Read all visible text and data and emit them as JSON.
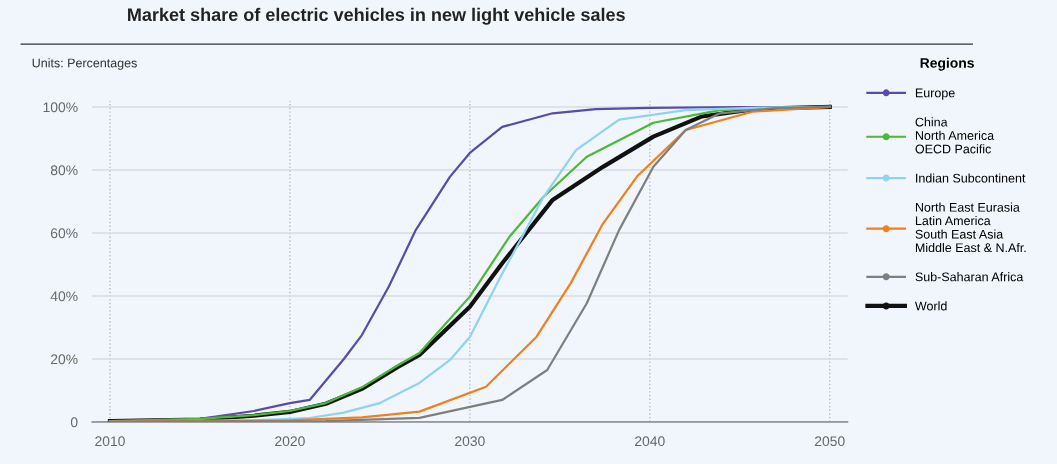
{
  "chart_data": {
    "type": "line",
    "title": "Market share of electric vehicles in new light vehicle sales",
    "annotations": [
      "Units: Percentages"
    ],
    "legend_title": "Regions",
    "legend": "right",
    "xlim": [
      2009,
      2051
    ],
    "xticks": [
      2010,
      2020,
      2030,
      2040,
      2050
    ],
    "ylim": [
      0,
      102
    ],
    "yticks": [
      {
        "value": 0,
        "label": "0"
      },
      {
        "value": 20,
        "label": "20%"
      },
      {
        "value": 40,
        "label": "40%"
      },
      {
        "value": 60,
        "label": "60%"
      },
      {
        "value": 80,
        "label": "80%"
      },
      {
        "value": 100,
        "label": "100%"
      }
    ],
    "grid": true,
    "series": [
      {
        "name": "Europe",
        "color": "#5b4ba8",
        "x": [
          2010,
          2015,
          2018,
          2020,
          2021.1,
          2023,
          2024,
          2025.5,
          2027,
          2028.9,
          2030,
          2031.8,
          2034.6,
          2037,
          2040,
          2045,
          2050
        ],
        "values": [
          0.3,
          1,
          3.5,
          6,
          7,
          20,
          27.6,
          43,
          61,
          77.9,
          85.4,
          93.7,
          98,
          99.3,
          99.7,
          100,
          100
        ]
      },
      {
        "name": "China\nNorth America\nOECD Pacific",
        "color": "#4cb83a",
        "x": [
          2010,
          2015,
          2018,
          2020,
          2022,
          2024,
          2026,
          2027.2,
          2030,
          2032.2,
          2034.1,
          2036.5,
          2040.2,
          2043.9,
          2047,
          2050
        ],
        "values": [
          0.3,
          1,
          2.2,
          3.5,
          6,
          11,
          18,
          21.9,
          39.8,
          58.8,
          71.5,
          84.2,
          95,
          99,
          99.8,
          100
        ]
      },
      {
        "name": "Indian Subcontinent",
        "color": "#8fd3f0",
        "x": [
          2010,
          2018,
          2021,
          2023,
          2025,
          2027.2,
          2028.9,
          2030,
          2031.7,
          2034.1,
          2035.9,
          2038.3,
          2042,
          2046,
          2050
        ],
        "values": [
          0.1,
          0.5,
          1.2,
          3,
          6,
          12.4,
          19.7,
          27,
          46,
          71.5,
          86.3,
          96,
          99,
          99.8,
          100
        ]
      },
      {
        "name": "North East Eurasia\nLatin America\nSouth East Asia\nMiddle East & N.Afr.",
        "color": "#f07f1d",
        "x": [
          2010,
          2020,
          2024,
          2027.2,
          2030.9,
          2033.7,
          2035.6,
          2037.4,
          2039.3,
          2042,
          2045.7,
          2050
        ],
        "values": [
          0.1,
          0.5,
          1.5,
          3.3,
          11.2,
          27,
          44,
          63,
          78,
          92.7,
          98.5,
          100
        ]
      },
      {
        "name": "Sub-Saharan Africa",
        "color": "#7f7f7f",
        "x": [
          2010,
          2022,
          2027.2,
          2031.8,
          2034.3,
          2036.5,
          2038.3,
          2040.2,
          2042,
          2043.9,
          2047,
          2050
        ],
        "values": [
          0.1,
          0.3,
          1.3,
          7,
          16.5,
          37.7,
          61,
          81,
          92.7,
          98,
          99.7,
          100
        ]
      },
      {
        "name": "World",
        "color": "#111111",
        "x": [
          2010,
          2015,
          2018,
          2020,
          2022,
          2024,
          2026,
          2027.2,
          2030,
          2031.8,
          2034.6,
          2037.4,
          2040.2,
          2042.9,
          2046,
          2050
        ],
        "values": [
          0.3,
          0.8,
          2,
          3.2,
          5.8,
          10.5,
          17.5,
          21.3,
          36.6,
          50.4,
          70.5,
          81,
          90.6,
          97,
          99.5,
          100
        ]
      }
    ]
  }
}
